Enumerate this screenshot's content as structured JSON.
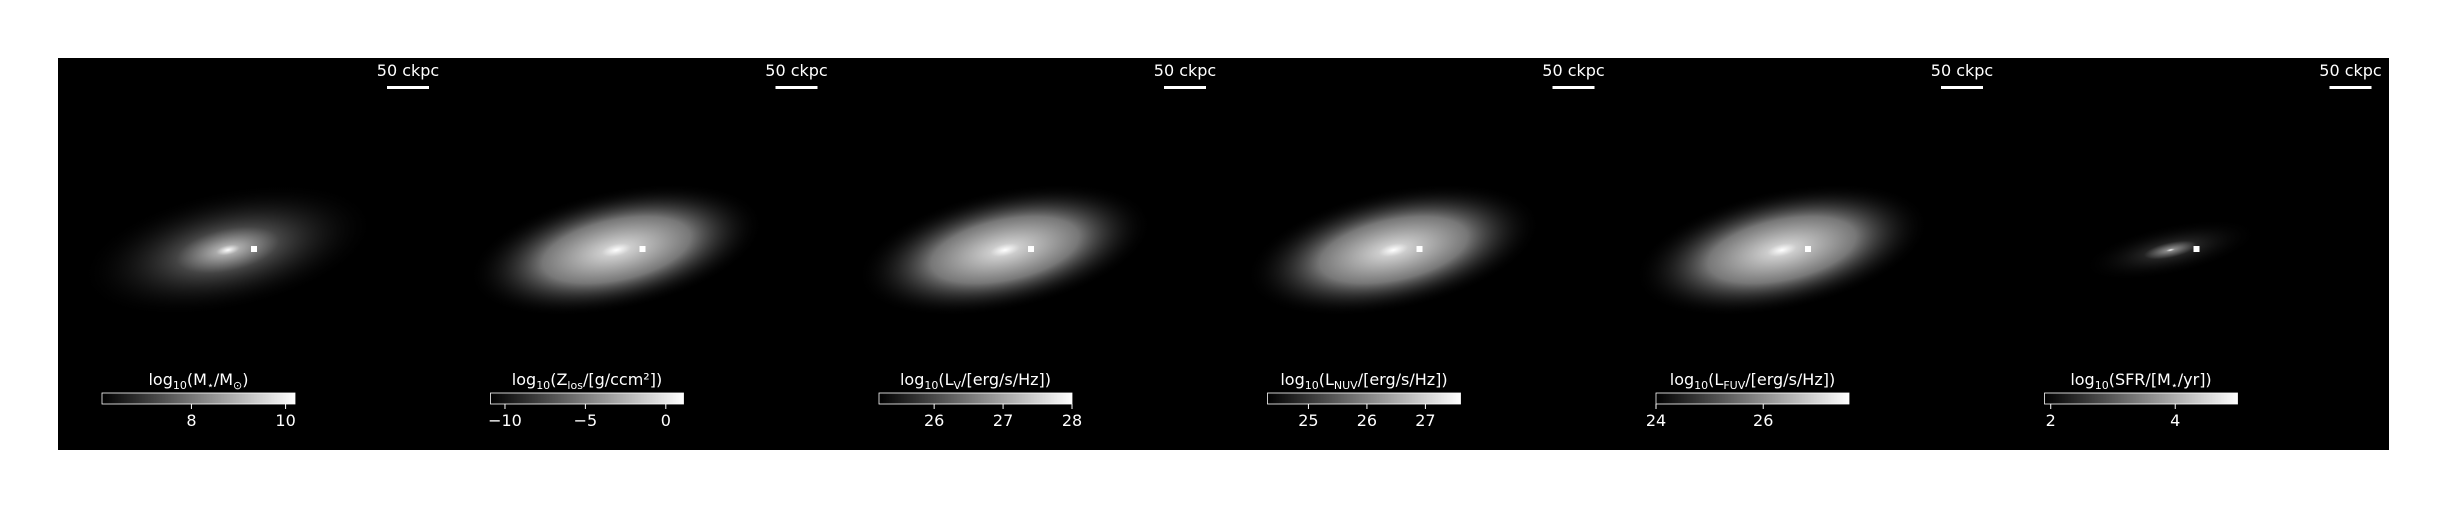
{
  "panels": [
    {
      "scale_bar": "50 ckpc",
      "colorbar": {
        "label": [
          {
            "text": "log"
          },
          {
            "text": "10",
            "sub": true
          },
          {
            "text": "("
          },
          {
            "text": "M"
          },
          {
            "text": "⋆",
            "sub": true
          },
          {
            "text": "/"
          },
          {
            "text": "M"
          },
          {
            "text": "⊙",
            "sub": true
          },
          {
            "text": ")"
          }
        ],
        "lim": [
          6.1,
          10.2
        ],
        "ticks": [
          8,
          10
        ]
      }
    },
    {
      "scale_bar": "50 ckpc",
      "colorbar": {
        "label": [
          {
            "text": "log"
          },
          {
            "text": "10",
            "sub": true
          },
          {
            "text": "("
          },
          {
            "text": "Z"
          },
          {
            "text": "los",
            "sub": true
          },
          {
            "text": "/[g/ccm²])"
          }
        ],
        "lim": [
          -10.9,
          1.1
        ],
        "ticks": [
          {
            "value": -10,
            "label": "−10"
          },
          {
            "value": -5,
            "label": "−5"
          },
          0
        ]
      }
    },
    {
      "scale_bar": "50 ckpc",
      "colorbar": {
        "label": [
          {
            "text": "log"
          },
          {
            "text": "10",
            "sub": true
          },
          {
            "text": "("
          },
          {
            "text": "L"
          },
          {
            "text": "V",
            "sub": true
          },
          {
            "text": "/[erg/s/Hz])"
          }
        ],
        "lim": [
          25.2,
          28.0
        ],
        "ticks": [
          26,
          27,
          28
        ]
      }
    },
    {
      "scale_bar": "50 ckpc",
      "colorbar": {
        "label": [
          {
            "text": "log"
          },
          {
            "text": "10",
            "sub": true
          },
          {
            "text": "("
          },
          {
            "text": "L"
          },
          {
            "text": "NUV",
            "sub": true
          },
          {
            "text": "/[erg/s/Hz])"
          }
        ],
        "lim": [
          24.3,
          27.6
        ],
        "ticks": [
          25,
          26,
          27
        ]
      }
    },
    {
      "scale_bar": "50 ckpc",
      "colorbar": {
        "label": [
          {
            "text": "log"
          },
          {
            "text": "10",
            "sub": true
          },
          {
            "text": "("
          },
          {
            "text": "L"
          },
          {
            "text": "FUV",
            "sub": true
          },
          {
            "text": "/[erg/s/Hz])"
          }
        ],
        "lim": [
          24.0,
          27.6
        ],
        "ticks": [
          24,
          26
        ]
      }
    },
    {
      "scale_bar": "50 ckpc",
      "colorbar": {
        "label": [
          {
            "text": "log"
          },
          {
            "text": "10",
            "sub": true
          },
          {
            "text": "(SFR/[M"
          },
          {
            "text": "⋆",
            "sub": true
          },
          {
            "text": "/yr])"
          }
        ],
        "lim": [
          1.9,
          5.0
        ],
        "ticks": [
          2,
          4
        ]
      }
    }
  ]
}
